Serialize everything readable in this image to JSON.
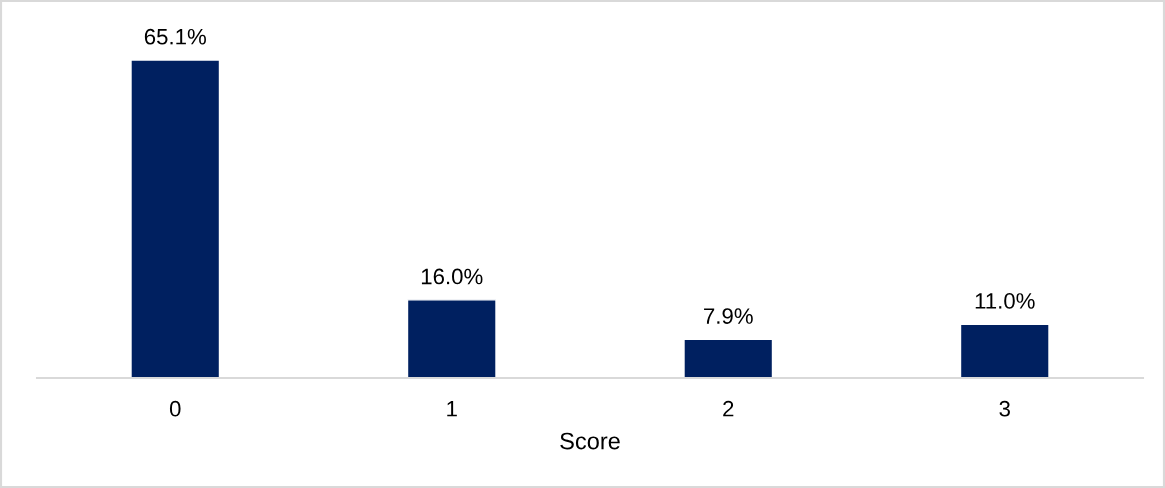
{
  "chart_data": {
    "type": "bar",
    "xlabel": "Score",
    "categories": [
      "0",
      "1",
      "2",
      "3"
    ],
    "values": [
      65.1,
      16.0,
      7.9,
      11.0
    ],
    "color": "#002060",
    "value_labels": [
      "65.1%",
      "16.0%",
      "7.9%",
      "11.0%"
    ],
    "tick_labels": "x"
  }
}
